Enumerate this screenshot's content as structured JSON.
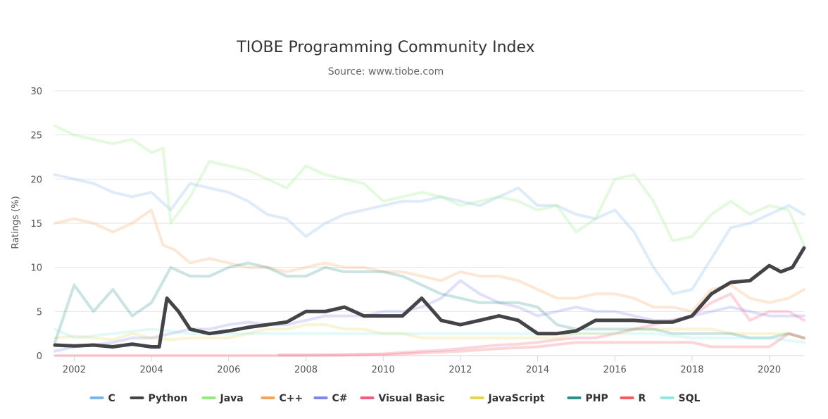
{
  "chart_data": {
    "type": "line",
    "title": "TIOBE Programming Community Index",
    "subtitle": "Source: www.tiobe.com",
    "ylabel": "Ratings (%)",
    "xlim": [
      2001.5,
      2020.9
    ],
    "ylim": [
      0,
      30
    ],
    "x_ticks": [
      2002,
      2004,
      2006,
      2008,
      2010,
      2012,
      2014,
      2016,
      2018,
      2020
    ],
    "y_ticks": [
      0,
      5,
      10,
      15,
      20,
      25,
      30
    ],
    "grid": true,
    "legend_position": "bottom",
    "highlighted_series": "Python",
    "series": [
      {
        "name": "C",
        "color": "#7cb5ec",
        "x": [
          2001.5,
          2002,
          2002.5,
          2003,
          2003.5,
          2004,
          2004.5,
          2005,
          2005.5,
          2006,
          2006.5,
          2007,
          2007.5,
          2008,
          2008.5,
          2009,
          2009.5,
          2010,
          2010.5,
          2011,
          2011.5,
          2012,
          2012.5,
          2013,
          2013.5,
          2014,
          2014.5,
          2015,
          2015.5,
          2016,
          2016.5,
          2017,
          2017.5,
          2018,
          2018.5,
          2019,
          2019.5,
          2020,
          2020.5,
          2020.9
        ],
        "y": [
          20.5,
          20,
          19.5,
          18.5,
          18,
          18.5,
          16.5,
          19.5,
          19,
          18.5,
          17.5,
          16,
          15.5,
          13.5,
          15,
          16,
          16.5,
          17,
          17.5,
          17.5,
          18,
          17.5,
          17,
          18,
          19,
          17,
          17,
          16,
          15.5,
          16.5,
          14,
          10,
          7,
          7.5,
          11,
          14.5,
          15,
          16,
          17,
          16
        ]
      },
      {
        "name": "Python",
        "color": "#434348",
        "x": [
          2001.5,
          2002,
          2002.5,
          2003,
          2003.5,
          2004,
          2004.2,
          2004.4,
          2004.7,
          2005,
          2005.5,
          2006,
          2006.5,
          2007,
          2007.5,
          2008,
          2008.5,
          2009,
          2009.5,
          2010,
          2010.5,
          2011,
          2011.5,
          2012,
          2012.5,
          2013,
          2013.5,
          2014,
          2014.5,
          2015,
          2015.5,
          2016,
          2016.5,
          2017,
          2017.5,
          2018,
          2018.5,
          2019,
          2019.5,
          2020,
          2020.3,
          2020.6,
          2020.9
        ],
        "y": [
          1.2,
          1.1,
          1.2,
          1,
          1.3,
          1,
          1,
          6.5,
          5,
          3,
          2.5,
          2.8,
          3.2,
          3.5,
          3.8,
          5,
          5,
          5.5,
          4.5,
          4.5,
          4.5,
          6.5,
          4,
          3.5,
          4,
          4.5,
          4,
          2.5,
          2.5,
          2.8,
          4,
          4,
          4,
          3.8,
          3.8,
          4.5,
          7,
          8.3,
          8.5,
          10.2,
          9.5,
          10,
          12.2
        ]
      },
      {
        "name": "Java",
        "color": "#90ed7d",
        "x": [
          2001.5,
          2002,
          2002.5,
          2003,
          2003.5,
          2004,
          2004.3,
          2004.5,
          2005,
          2005.5,
          2006,
          2006.5,
          2007,
          2007.5,
          2008,
          2008.5,
          2009,
          2009.5,
          2010,
          2010.5,
          2011,
          2011.5,
          2012,
          2012.5,
          2013,
          2013.5,
          2014,
          2014.5,
          2015,
          2015.5,
          2016,
          2016.5,
          2017,
          2017.5,
          2018,
          2018.5,
          2019,
          2019.5,
          2020,
          2020.5,
          2020.9
        ],
        "y": [
          26,
          25,
          24.5,
          24,
          24.5,
          23,
          23.5,
          15,
          18,
          22,
          21.5,
          21,
          20,
          19,
          21.5,
          20.5,
          20,
          19.5,
          17.5,
          18,
          18.5,
          18,
          17,
          17.5,
          18,
          17.5,
          16.5,
          17,
          14,
          15.5,
          20,
          20.5,
          17.5,
          13,
          13.5,
          16,
          17.5,
          16,
          17,
          16.5,
          12.5
        ]
      },
      {
        "name": "C++",
        "color": "#f7a35c",
        "x": [
          2001.5,
          2002,
          2002.5,
          2003,
          2003.5,
          2004,
          2004.3,
          2004.6,
          2005,
          2005.5,
          2006,
          2006.5,
          2007,
          2007.5,
          2008,
          2008.5,
          2009,
          2009.5,
          2010,
          2010.5,
          2011,
          2011.5,
          2012,
          2012.5,
          2013,
          2013.5,
          2014,
          2014.5,
          2015,
          2015.5,
          2016,
          2016.5,
          2017,
          2017.5,
          2018,
          2018.5,
          2019,
          2019.5,
          2020,
          2020.5,
          2020.9
        ],
        "y": [
          15,
          15.5,
          15,
          14,
          15,
          16.5,
          12.5,
          12,
          10.5,
          11,
          10.5,
          10,
          10,
          9.5,
          10,
          10.5,
          10,
          10,
          9.5,
          9.5,
          9,
          8.5,
          9.5,
          9,
          9,
          8.5,
          7.5,
          6.5,
          6.5,
          7,
          7,
          6.5,
          5.5,
          5.5,
          5,
          7.5,
          8,
          6.5,
          6,
          6.5,
          7.5
        ]
      },
      {
        "name": "C#",
        "color": "#8085e9",
        "x": [
          2001.5,
          2002,
          2002.5,
          2003,
          2003.5,
          2004,
          2004.5,
          2005,
          2005.5,
          2006,
          2006.5,
          2007,
          2007.5,
          2008,
          2008.5,
          2009,
          2009.5,
          2010,
          2010.5,
          2011,
          2011.5,
          2012,
          2012.5,
          2013,
          2013.5,
          2014,
          2014.5,
          2015,
          2015.5,
          2016,
          2016.5,
          2017,
          2017.5,
          2018,
          2018.5,
          2019,
          2019.5,
          2020,
          2020.5,
          2020.9
        ],
        "y": [
          0.5,
          1,
          1.2,
          1.5,
          2,
          2,
          2.5,
          3,
          3,
          3.5,
          3.8,
          3.5,
          3.5,
          4,
          4.5,
          4.5,
          4.5,
          5,
          5,
          5.5,
          6.5,
          8.5,
          7,
          6,
          5.5,
          4.5,
          5,
          5.5,
          5,
          5,
          4.5,
          4,
          4,
          4.5,
          5,
          5.5,
          5,
          4.5,
          4.5,
          4.5
        ]
      },
      {
        "name": "Visual Basic",
        "color": "#f15c80",
        "x": [
          2007.3,
          2008,
          2009,
          2010,
          2011,
          2011.5,
          2012,
          2012.5,
          2013,
          2013.5,
          2014,
          2014.5,
          2015,
          2015.5,
          2016,
          2016.5,
          2017,
          2017.5,
          2018,
          2018.5,
          2019,
          2019.5,
          2020,
          2020.5,
          2020.9
        ],
        "y": [
          0.1,
          0.1,
          0.1,
          0.2,
          0.5,
          0.6,
          0.8,
          1,
          1.2,
          1.3,
          1.5,
          1.8,
          2,
          2,
          2.5,
          3,
          3.5,
          4,
          4.5,
          6,
          7,
          4,
          5,
          5,
          4
        ]
      },
      {
        "name": "JavaScript",
        "color": "#e4d354",
        "x": [
          2001.5,
          2002,
          2002.5,
          2003,
          2003.5,
          2004,
          2004.5,
          2005,
          2005.5,
          2006,
          2006.5,
          2007,
          2007.5,
          2008,
          2008.5,
          2009,
          2009.5,
          2010,
          2010.5,
          2011,
          2011.5,
          2012,
          2012.5,
          2013,
          2013.5,
          2014,
          2014.5,
          2015,
          2015.5,
          2016,
          2016.5,
          2017,
          2017.5,
          2018,
          2018.5,
          2019,
          2019.5,
          2020,
          2020.5,
          2020.9
        ],
        "y": [
          2,
          2.2,
          2,
          1.8,
          2.5,
          2,
          1.8,
          2,
          2,
          2,
          2.5,
          3,
          3,
          3.5,
          3.5,
          3,
          3,
          2.5,
          2.5,
          2,
          2,
          2,
          2,
          2,
          2,
          2,
          2,
          2.5,
          2.5,
          2.5,
          3,
          3,
          3,
          3,
          3,
          2.5,
          2.5,
          2.5,
          2.5,
          2
        ]
      },
      {
        "name": "PHP",
        "color": "#2b908f",
        "x": [
          2001.5,
          2002,
          2002.5,
          2003,
          2003.5,
          2004,
          2004.5,
          2005,
          2005.5,
          2006,
          2006.5,
          2007,
          2007.5,
          2008,
          2008.5,
          2009,
          2009.5,
          2010,
          2010.5,
          2011,
          2011.5,
          2012,
          2012.5,
          2013,
          2013.5,
          2014,
          2014.5,
          2015,
          2015.5,
          2016,
          2016.5,
          2017,
          2017.5,
          2018,
          2018.5,
          2019,
          2019.5,
          2020,
          2020.5,
          2020.9
        ],
        "y": [
          1.5,
          8,
          5,
          7.5,
          4.5,
          6,
          10,
          9,
          9,
          10,
          10.5,
          10,
          9,
          9,
          10,
          9.5,
          9.5,
          9.5,
          9,
          8,
          7,
          6.5,
          6,
          6,
          6,
          5.5,
          3.5,
          3,
          3,
          3,
          3,
          3,
          2.5,
          2.5,
          2.5,
          2.5,
          2,
          2,
          2.5,
          2
        ]
      },
      {
        "name": "R",
        "color": "#f45b5b",
        "x": [
          2001.5,
          2004,
          2006,
          2008,
          2010,
          2011,
          2012,
          2013,
          2014,
          2015,
          2016,
          2017,
          2018,
          2018.5,
          2019,
          2019.5,
          2020,
          2020.5,
          2020.9
        ],
        "y": [
          0,
          0,
          0,
          0,
          0.1,
          0.3,
          0.5,
          0.8,
          1,
          1.5,
          1.5,
          1.5,
          1.5,
          1,
          1,
          1,
          1,
          2.5,
          2
        ]
      },
      {
        "name": "SQL",
        "color": "#91e8e1",
        "x": [
          2001.5,
          2002,
          2003,
          2004,
          2005,
          2006,
          2007,
          2008,
          2009,
          2010,
          2011,
          2012,
          2013,
          2014,
          2015,
          2016,
          2017,
          2018,
          2019,
          2020,
          2020.9
        ],
        "y": [
          3,
          2,
          2.5,
          3,
          2.5,
          2.5,
          2.5,
          2.5,
          2.5,
          2.5,
          2.5,
          2.5,
          2.5,
          2.5,
          2.5,
          2.5,
          2.5,
          2,
          2,
          2,
          1.5
        ]
      }
    ]
  }
}
